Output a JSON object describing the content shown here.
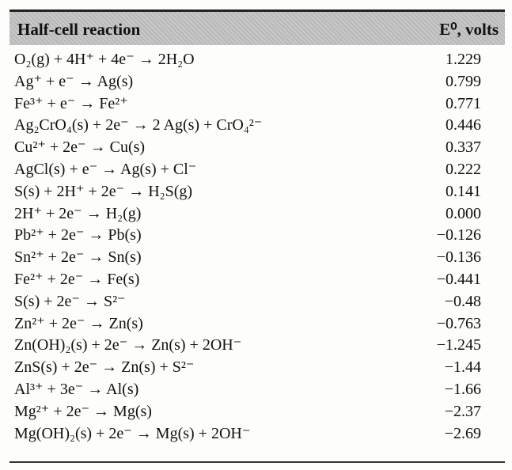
{
  "header": {
    "columns": [
      "Half-cell reaction",
      "E⁰, volts"
    ]
  },
  "table": {
    "rows": [
      [
        "O₂(g) + 4H⁺ + 4e⁻ → 2H₂O",
        "1.229"
      ],
      [
        "Ag⁺ + e⁻ → Ag(s)",
        "0.799"
      ],
      [
        "Fe³⁺ + e⁻ → Fe²⁺",
        "0.771"
      ],
      [
        "Ag₂CrO₄(s) + 2e⁻ → 2 Ag(s) + CrO₄²⁻",
        "0.446"
      ],
      [
        "Cu²⁺ + 2e⁻ → Cu(s)",
        "0.337"
      ],
      [
        "AgCl(s) + e⁻ → Ag(s) + Cl⁻",
        "0.222"
      ],
      [
        "S(s) + 2H⁺ + 2e⁻ → H₂S(g)",
        "0.141"
      ],
      [
        "2H⁺ + 2e⁻ → H₂(g)",
        "0.000"
      ],
      [
        "Pb²⁺ + 2e⁻ → Pb(s)",
        "−0.126"
      ],
      [
        "Sn²⁺ + 2e⁻ → Sn(s)",
        "−0.136"
      ],
      [
        "Fe²⁺ + 2e⁻ → Fe(s)",
        "−0.441"
      ],
      [
        "S(s) + 2e⁻ → S²⁻",
        "−0.48"
      ],
      [
        "Zn²⁺ + 2e⁻ → Zn(s)",
        "−0.763"
      ],
      [
        "Zn(OH)₂(s) + 2e⁻ → Zn(s) + 2OH⁻",
        "−1.245"
      ],
      [
        "ZnS(s) + 2e⁻ → Zn(s) + S²⁻",
        "−1.44"
      ],
      [
        "Al³⁺ + 3e⁻ → Al(s)",
        "−1.66"
      ],
      [
        "Mg²⁺ + 2e⁻ → Mg(s)",
        "−2.37"
      ],
      [
        "Mg(OH)₂(s) + 2e⁻ → Mg(s) + 2OH⁻",
        "−2.69"
      ]
    ]
  }
}
